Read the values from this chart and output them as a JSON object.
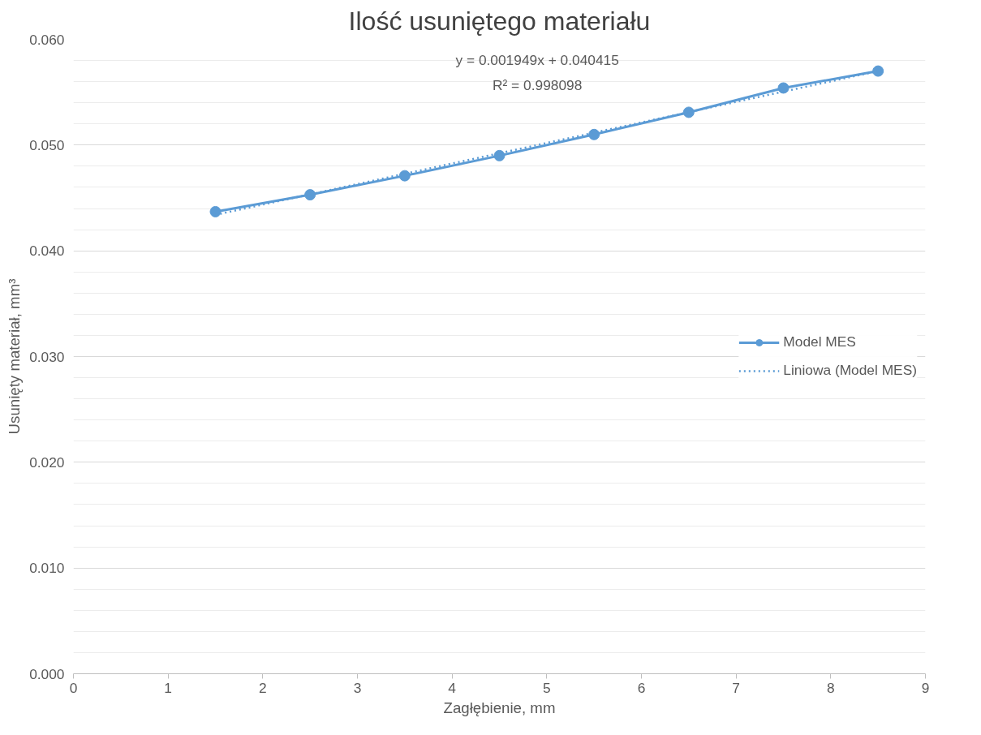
{
  "chart_data": {
    "type": "line",
    "title": "Ilość usuniętego materiału",
    "xlabel": "Zagłębienie, mm",
    "ylabel": "Usunięty materiał, mm³",
    "annotations": [
      "y = 0.001949x + 0.040415",
      "R² = 0.998098"
    ],
    "x": [
      1.5,
      2.5,
      3.5,
      4.5,
      5.5,
      6.5,
      7.5,
      8.5
    ],
    "series": [
      {
        "name": "Model MES",
        "color": "#5b9bd5",
        "marker": "circle",
        "line_style": "solid",
        "values": [
          0.0437,
          0.0453,
          0.0471,
          0.049,
          0.051,
          0.0531,
          0.0554,
          0.057
        ]
      },
      {
        "name": "Liniowa (Model MES)",
        "color": "#5b9bd5",
        "marker": "none",
        "line_style": "dotted",
        "x": [
          1.5,
          8.5
        ],
        "values": [
          0.0434,
          0.057
        ]
      }
    ],
    "xlim": [
      0,
      9
    ],
    "xticks": [
      0,
      1,
      2,
      3,
      4,
      5,
      6,
      7,
      8,
      9
    ],
    "ylim": [
      0,
      0.06
    ],
    "yticks": [
      {
        "value": 0,
        "label": "0.000"
      },
      {
        "value": 0.002,
        "label": null
      },
      {
        "value": 0.004,
        "label": null
      },
      {
        "value": 0.006,
        "label": null
      },
      {
        "value": 0.008,
        "label": null
      },
      {
        "value": 0.01,
        "label": "0.010"
      },
      {
        "value": 0.012,
        "label": null
      },
      {
        "value": 0.014,
        "label": null
      },
      {
        "value": 0.016,
        "label": null
      },
      {
        "value": 0.018,
        "label": null
      },
      {
        "value": 0.02,
        "label": "0.020"
      },
      {
        "value": 0.022,
        "label": null
      },
      {
        "value": 0.024,
        "label": null
      },
      {
        "value": 0.026,
        "label": null
      },
      {
        "value": 0.028,
        "label": null
      },
      {
        "value": 0.03,
        "label": "0.030"
      },
      {
        "value": 0.032,
        "label": null
      },
      {
        "value": 0.034,
        "label": null
      },
      {
        "value": 0.036,
        "label": null
      },
      {
        "value": 0.038,
        "label": null
      },
      {
        "value": 0.04,
        "label": "0.040"
      },
      {
        "value": 0.042,
        "label": null
      },
      {
        "value": 0.044,
        "label": null
      },
      {
        "value": 0.046,
        "label": null
      },
      {
        "value": 0.048,
        "label": null
      },
      {
        "value": 0.05,
        "label": "0.050"
      },
      {
        "value": 0.052,
        "label": null
      },
      {
        "value": 0.054,
        "label": null
      },
      {
        "value": 0.056,
        "label": null
      },
      {
        "value": 0.058,
        "label": null
      },
      {
        "value": 0.06,
        "label": "0.060"
      }
    ],
    "grid": "y",
    "legend": "right"
  }
}
